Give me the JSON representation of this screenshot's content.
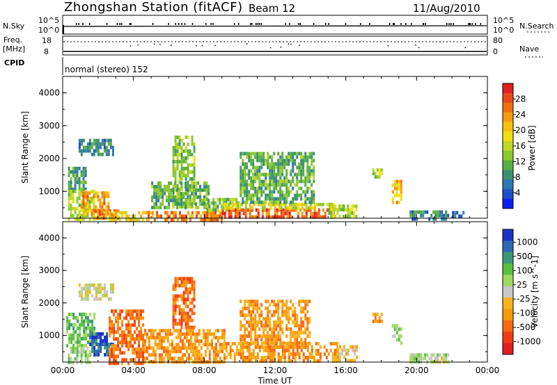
{
  "header": {
    "station": "Zhongshan Station (fitACF)",
    "beam": "Beam 12",
    "date": "11/Aug/2010"
  },
  "top_panels": {
    "nsky_label": "N.Sky",
    "nsky_ticks": [
      "10^5",
      "10^0"
    ],
    "nsearch_label": "N.Search",
    "nsearch_ticks": [
      "10^5",
      "10^0"
    ],
    "freq_label": "Freq.",
    "freq_unit": "[MHz]",
    "freq_ticks": [
      "18",
      "8"
    ],
    "nave_label": "Nave",
    "nave_ticks": [
      "80",
      "0"
    ],
    "cpid_label": "CPID",
    "cpid_value": "normal (stereo) 152"
  },
  "chart_data": [
    {
      "type": "heatmap",
      "name": "power",
      "ylabel": "Slant Range [km]",
      "ylim": [
        180,
        4500
      ],
      "yticks": [
        "1000",
        "2000",
        "3000",
        "4000"
      ],
      "yticks_values": [
        1000,
        2000,
        3000,
        4000
      ],
      "xlim_hours": [
        0,
        24
      ],
      "colorbar": {
        "label": "Power [dB]",
        "range": [
          0,
          32
        ],
        "tick_labels": [
          "4",
          "8",
          "12",
          "16",
          "20",
          "24",
          "28"
        ],
        "tick_values": [
          4,
          8,
          12,
          16,
          20,
          24,
          28
        ],
        "colors": [
          "#0a1ef0",
          "#1e4ec8",
          "#2e78b0",
          "#3c9070",
          "#58b040",
          "#8cc830",
          "#c0d828",
          "#f0e010",
          "#f8c010",
          "#f89a10",
          "#f07010",
          "#e84818",
          "#e01e1e"
        ]
      },
      "regions": [
        {
          "t": [
            0.3,
            1.3
          ],
          "r": [
            1100,
            1750
          ],
          "v": 8
        },
        {
          "t": [
            0.3,
            1.8
          ],
          "r": [
            180,
            1050
          ],
          "v": 14
        },
        {
          "t": [
            1.0,
            2.6
          ],
          "r": [
            350,
            1000
          ],
          "v": 22
        },
        {
          "t": [
            1.8,
            3.1
          ],
          "r": [
            180,
            450
          ],
          "v": 24
        },
        {
          "t": [
            0.9,
            2.8
          ],
          "r": [
            2100,
            2600
          ],
          "v": 6
        },
        {
          "t": [
            2.6,
            4.8
          ],
          "r": [
            180,
            400
          ],
          "v": 18
        },
        {
          "t": [
            4.8,
            9.0
          ],
          "r": [
            180,
            400
          ],
          "v": 24
        },
        {
          "t": [
            6.2,
            7.4
          ],
          "r": [
            500,
            2700
          ],
          "v": 12
        },
        {
          "t": [
            5.0,
            8.2
          ],
          "r": [
            500,
            1300
          ],
          "v": 10
        },
        {
          "t": [
            8.0,
            10.0
          ],
          "r": [
            400,
            800
          ],
          "v": 12
        },
        {
          "t": [
            9.0,
            15.3
          ],
          "r": [
            200,
            480
          ],
          "v": 26
        },
        {
          "t": [
            9.0,
            15.3
          ],
          "r": [
            480,
            650
          ],
          "v": 16
        },
        {
          "t": [
            15.0,
            16.6
          ],
          "r": [
            250,
            600
          ],
          "v": 14
        },
        {
          "t": [
            10.0,
            14.2
          ],
          "r": [
            700,
            2200
          ],
          "v": 10
        },
        {
          "t": [
            17.5,
            18.0
          ],
          "r": [
            1400,
            1700
          ],
          "v": 14
        },
        {
          "t": [
            18.6,
            19.1
          ],
          "r": [
            700,
            1350
          ],
          "v": 20
        },
        {
          "t": [
            19.6,
            21.8
          ],
          "r": [
            180,
            420
          ],
          "v": 6
        },
        {
          "t": [
            22.0,
            22.6
          ],
          "r": [
            250,
            400
          ],
          "v": 5
        }
      ]
    },
    {
      "type": "heatmap",
      "name": "velocity",
      "ylabel": "Slant Range [km]",
      "xlabel": "Time UT",
      "ylim": [
        180,
        4500
      ],
      "yticks": [
        "1000",
        "2000",
        "3000",
        "4000"
      ],
      "yticks_values": [
        1000,
        2000,
        3000,
        4000
      ],
      "xlim_hours": [
        0,
        24
      ],
      "xticks": [
        "00:00",
        "04:00",
        "08:00",
        "12:00",
        "16:00",
        "20:00",
        "00:00"
      ],
      "colorbar": {
        "label": "Velocity [m s^-1]",
        "tick_labels": [
          "1000",
          "500",
          "100",
          "25",
          "-25",
          "-100",
          "-500",
          "-1000"
        ],
        "colors": [
          "#1a32c8",
          "#2e6ab4",
          "#3c9a78",
          "#58c040",
          "#a0d860",
          "#c8c8c8",
          "#f8b41a",
          "#f89a0c",
          "#f86a10",
          "#f03c14",
          "#e01e1e"
        ]
      },
      "regions": [
        {
          "t": [
            0.2,
            1.8
          ],
          "r": [
            700,
            1700
          ],
          "v": 3
        },
        {
          "t": [
            1.5,
            2.8
          ],
          "r": [
            400,
            1100
          ],
          "v": 1
        },
        {
          "t": [
            0.3,
            1.5
          ],
          "r": [
            180,
            650
          ],
          "v": 4
        },
        {
          "t": [
            0.9,
            2.8
          ],
          "r": [
            2100,
            2600
          ],
          "v": 5
        },
        {
          "t": [
            2.6,
            4.6
          ],
          "r": [
            180,
            1800
          ],
          "v": 8
        },
        {
          "t": [
            4.6,
            9.2
          ],
          "r": [
            180,
            1200
          ],
          "v": 7
        },
        {
          "t": [
            6.2,
            7.4
          ],
          "r": [
            1200,
            2800
          ],
          "v": 8
        },
        {
          "t": [
            9.2,
            15.5
          ],
          "r": [
            180,
            800
          ],
          "v": 7
        },
        {
          "t": [
            10.0,
            14.0
          ],
          "r": [
            800,
            2100
          ],
          "v": 7
        },
        {
          "t": [
            15.5,
            16.6
          ],
          "r": [
            250,
            700
          ],
          "v": 6
        },
        {
          "t": [
            17.5,
            18.0
          ],
          "r": [
            1400,
            1700
          ],
          "v": 7
        },
        {
          "t": [
            18.6,
            19.1
          ],
          "r": [
            750,
            1350
          ],
          "v": 4
        },
        {
          "t": [
            19.6,
            21.8
          ],
          "r": [
            180,
            450
          ],
          "v": 4
        },
        {
          "t": [
            21.0,
            21.6
          ],
          "r": [
            180,
            350
          ],
          "v": 5
        }
      ]
    }
  ]
}
